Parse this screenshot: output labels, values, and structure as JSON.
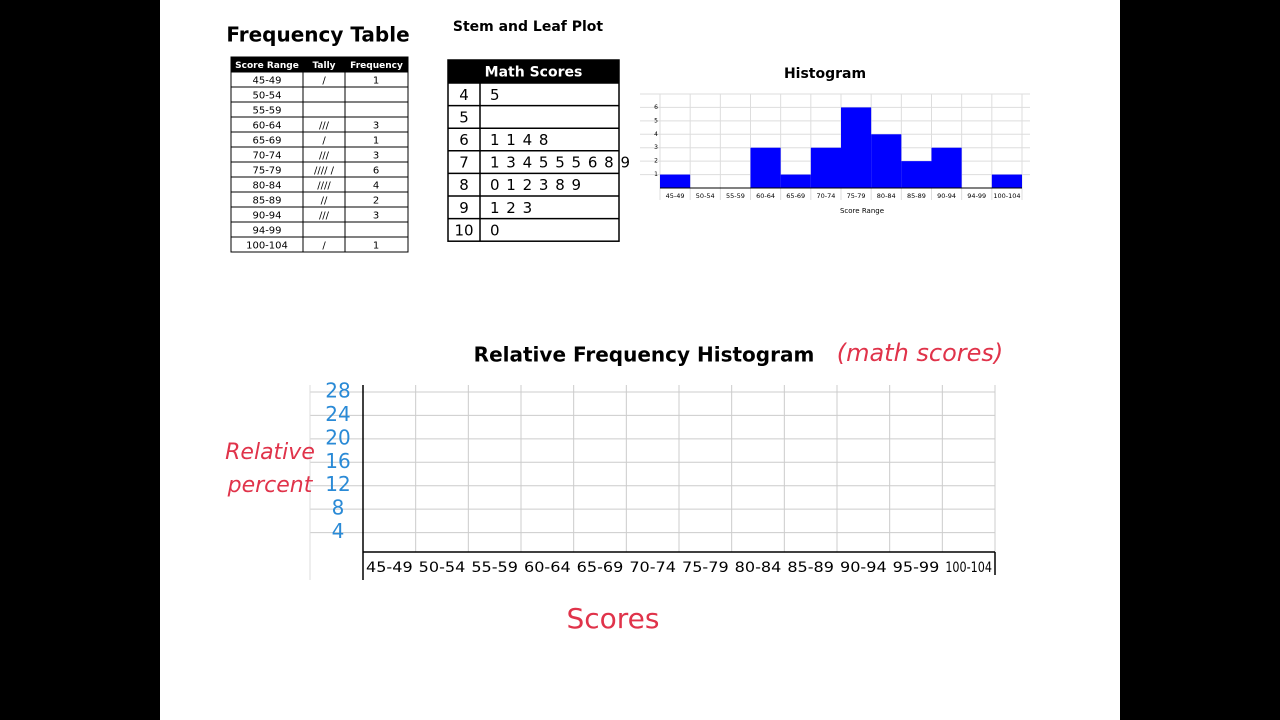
{
  "frequency_table": {
    "title": "Frequency Table",
    "headers": [
      "Score Range",
      "Tally",
      "Frequency"
    ],
    "rows": [
      {
        "range": "45-49",
        "tally": "/",
        "frequency": 1
      },
      {
        "range": "50-54"
      },
      {
        "range": "55-59"
      },
      {
        "range": "60-64",
        "tally": "///",
        "frequency": 3
      },
      {
        "range": "65-69",
        "tally": "/",
        "frequency": 1
      },
      {
        "range": "70-74",
        "tally": "///",
        "frequency": 3
      },
      {
        "range": "75-79",
        "tally": "//// /",
        "frequency": 6
      },
      {
        "range": "80-84",
        "tally": "////",
        "frequency": 4
      },
      {
        "range": "85-89",
        "tally": "//",
        "frequency": 2
      },
      {
        "range": "90-94",
        "tally": "///",
        "frequency": 3
      },
      {
        "range": "94-99"
      },
      {
        "range": "100-104",
        "tally": "/",
        "frequency": 1
      }
    ]
  },
  "stem_leaf": {
    "title": "Stem and Leaf Plot",
    "header": "Math Scores",
    "rows": [
      {
        "stem": 4,
        "leaves": "5"
      },
      {
        "stem": 5
      },
      {
        "stem": 6,
        "leaves": "1 1 4 8"
      },
      {
        "stem": 7,
        "leaves": "1 3 4 5 5 5 6 8 9"
      },
      {
        "stem": 8,
        "leaves": "0 1 2 3 8 9"
      },
      {
        "stem": 9,
        "leaves": "1 2 3"
      },
      {
        "stem": 10,
        "leaves": "0"
      }
    ]
  },
  "chart_data": [
    {
      "type": "bar",
      "title": "Histogram",
      "xlabel": "Score Range",
      "categories": [
        "45-49",
        "50-54",
        "55-59",
        "60-64",
        "65-69",
        "70-74",
        "75-79",
        "80-84",
        "85-89",
        "90-94",
        "94-99",
        "100-104"
      ],
      "values": [
        1,
        0,
        0,
        3,
        1,
        3,
        6,
        4,
        2,
        3,
        0,
        1
      ],
      "color": "#0000ff",
      "ylim": [
        0,
        7
      ],
      "yticks": [
        1,
        2,
        3,
        4,
        5,
        6
      ],
      "grid": true
    },
    {
      "type": "bar",
      "title": "Relative Frequency Histogram",
      "annotation": "(math scores)",
      "ylabel": [
        "Relative",
        "percent"
      ],
      "xlabel": "Scores",
      "categories": [
        "45-49",
        "50-54",
        "55-59",
        "60-64",
        "65-69",
        "70-74",
        "75-79",
        "80-84",
        "85-89",
        "90-94",
        "95-99",
        "100-104"
      ],
      "ylim": [
        0,
        28
      ],
      "yticks": [
        28,
        24,
        20,
        16,
        12,
        8,
        4
      ],
      "grid": true
    }
  ]
}
